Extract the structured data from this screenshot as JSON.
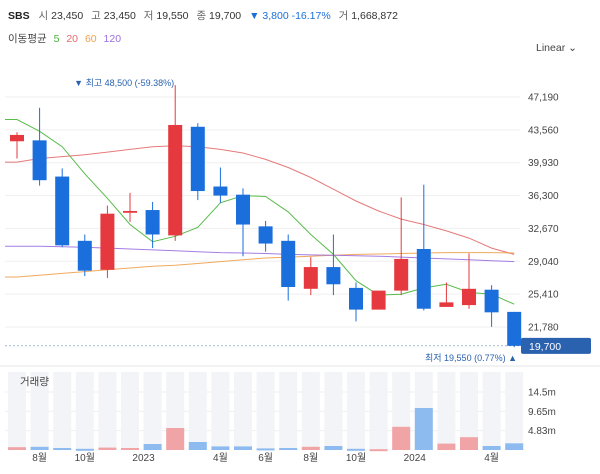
{
  "quote": {
    "symbol": "SBS",
    "open_label": "시",
    "open": "23,450",
    "high_label": "고",
    "high": "23,450",
    "low_label": "저",
    "low": "19,550",
    "close_label": "종",
    "close": "19,700",
    "change": "▼ 3,800 -16.17%",
    "volume_label": "거",
    "volume": "1,668,872"
  },
  "ma_legend": {
    "title": "이동평균",
    "periods": [
      {
        "label": "5",
        "color": "#46b536"
      },
      {
        "label": "20",
        "color": "#e26c6c"
      },
      {
        "label": "60",
        "color": "#f0a04b"
      },
      {
        "label": "120",
        "color": "#9b6fe0"
      }
    ]
  },
  "scale_button": "Linear ⌄",
  "volume_title": "거래량",
  "colors": {
    "up": "#e5393f",
    "down": "#1a6fdc",
    "current": "#2a62b0"
  },
  "chart_data": {
    "type": "candlestick",
    "price_ticks": [
      "47,190",
      "43,560",
      "39,930",
      "36,300",
      "32,670",
      "29,040",
      "25,410",
      "21,780"
    ],
    "price_tick_values": [
      47190,
      43560,
      39930,
      36300,
      32670,
      29040,
      25410,
      21780
    ],
    "ylim": [
      19000,
      49000
    ],
    "x_ticks": [
      {
        "label": "8월",
        "index": 1
      },
      {
        "label": "10월",
        "index": 3
      },
      {
        "label": "2023",
        "index": 5.6
      },
      {
        "label": "4월",
        "index": 9
      },
      {
        "label": "6월",
        "index": 11
      },
      {
        "label": "8월",
        "index": 13
      },
      {
        "label": "10월",
        "index": 15
      },
      {
        "label": "2024",
        "index": 17.6
      },
      {
        "label": "4월",
        "index": 21
      }
    ],
    "candles": [
      {
        "o": 42300,
        "h": 43300,
        "l": 40400,
        "c": 43000
      },
      {
        "o": 42400,
        "h": 46000,
        "l": 37400,
        "c": 38000
      },
      {
        "o": 38400,
        "h": 39300,
        "l": 30600,
        "c": 30800
      },
      {
        "o": 31300,
        "h": 32000,
        "l": 27400,
        "c": 28000
      },
      {
        "o": 28100,
        "h": 35200,
        "l": 27200,
        "c": 34300
      },
      {
        "o": 34400,
        "h": 36600,
        "l": 33400,
        "c": 34600
      },
      {
        "o": 34700,
        "h": 35600,
        "l": 30500,
        "c": 32000
      },
      {
        "o": 31900,
        "h": 48500,
        "l": 31300,
        "c": 44100
      },
      {
        "o": 43900,
        "h": 44300,
        "l": 35800,
        "c": 36800
      },
      {
        "o": 37300,
        "h": 39400,
        "l": 35500,
        "c": 36300
      },
      {
        "o": 36400,
        "h": 37100,
        "l": 29600,
        "c": 33100
      },
      {
        "o": 32900,
        "h": 33500,
        "l": 30100,
        "c": 31000
      },
      {
        "o": 31300,
        "h": 32000,
        "l": 24700,
        "c": 26200
      },
      {
        "o": 26000,
        "h": 29500,
        "l": 25300,
        "c": 28400
      },
      {
        "o": 28400,
        "h": 32000,
        "l": 25300,
        "c": 26500
      },
      {
        "o": 26100,
        "h": 26700,
        "l": 22400,
        "c": 23700
      },
      {
        "o": 23700,
        "h": 25700,
        "l": 23700,
        "c": 25800
      },
      {
        "o": 25800,
        "h": 36100,
        "l": 25300,
        "c": 29300
      },
      {
        "o": 30400,
        "h": 37500,
        "l": 23600,
        "c": 23800
      },
      {
        "o": 24000,
        "h": 26700,
        "l": 24000,
        "c": 24500
      },
      {
        "o": 24200,
        "h": 29900,
        "l": 23800,
        "c": 26000
      },
      {
        "o": 25900,
        "h": 26400,
        "l": 21800,
        "c": 23400
      },
      {
        "o": 23450,
        "h": 23450,
        "l": 19550,
        "c": 19700
      }
    ],
    "volume_ticks": [
      "14.5m",
      "9.65m",
      "4.83m"
    ],
    "volume_tick_values": [
      14.5,
      9.65,
      4.83
    ],
    "volume_max": 19.5,
    "volumes": [
      0.7,
      0.8,
      0.5,
      0.3,
      0.6,
      0.5,
      1.5,
      5.5,
      2.0,
      0.9,
      0.9,
      0.4,
      0.5,
      0.8,
      1.0,
      0.3,
      0.2,
      5.8,
      10.5,
      1.6,
      3.2,
      1.0,
      1.67
    ],
    "ma": [
      {
        "period": "5",
        "color": "#46b536",
        "values": [
          44700,
          43400,
          41700,
          38700,
          36000,
          33100,
          31200,
          31800,
          32800,
          35500,
          36300,
          36200,
          34500,
          32000,
          29800,
          26900,
          25300,
          25400,
          26100,
          26500,
          25600,
          25400,
          24300
        ]
      },
      {
        "period": "20",
        "color": "#e26c6c",
        "values": [
          40000,
          40400,
          40600,
          40800,
          41100,
          41400,
          41700,
          41800,
          41700,
          41400,
          41000,
          40300,
          39400,
          38300,
          37000,
          35700,
          34600,
          33700,
          33100,
          32400,
          31600,
          30500,
          29800
        ]
      },
      {
        "period": "60",
        "color": "#f0a04b",
        "values": [
          27300,
          27500,
          27700,
          27900,
          28100,
          28300,
          28500,
          28600,
          28800,
          29000,
          29200,
          29400,
          29500,
          29600,
          29700,
          29800,
          29850,
          29900,
          29950,
          30000,
          30000,
          30000,
          29950
        ]
      },
      {
        "period": "120",
        "color": "#9b6fe0",
        "values": [
          30700,
          30700,
          30650,
          30600,
          30500,
          30400,
          30300,
          30200,
          30100,
          30000,
          29950,
          29900,
          29800,
          29750,
          29700,
          29650,
          29600,
          29500,
          29400,
          29300,
          29200,
          29100,
          29000
        ]
      }
    ],
    "max_marker": "▼ 최고 48,500 (-59.38%)",
    "min_marker": "최저 19,550 (0.77%) ▲",
    "current_price": "19,700"
  }
}
